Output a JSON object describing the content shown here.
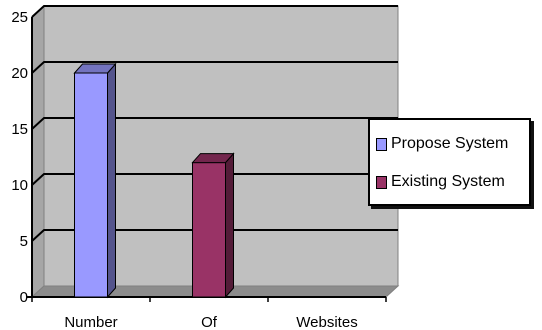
{
  "chart_data": {
    "type": "bar",
    "title": "",
    "xlabel": "",
    "ylabel": "",
    "categories": [
      "Number",
      "Of",
      "Websites"
    ],
    "series": [
      {
        "name": "Propose System",
        "values": [
          20,
          null,
          null
        ],
        "color": "#9999ff"
      },
      {
        "name": "Existing System",
        "values": [
          null,
          12,
          null
        ],
        "color": "#993366"
      }
    ],
    "ylim": [
      0,
      25
    ],
    "yticks": [
      "0",
      "5",
      "10",
      "15",
      "20",
      "25"
    ],
    "grid": true,
    "plot_background": "#c0c0c0",
    "legend_position": "right"
  }
}
